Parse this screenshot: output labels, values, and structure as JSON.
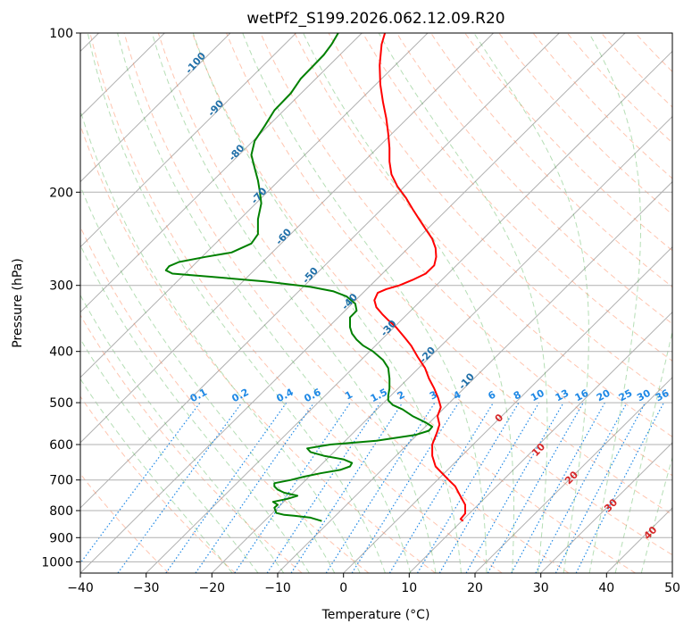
{
  "chart_data": {
    "type": "line",
    "title": "wetPf2_S199.2026.062.12.09.R20",
    "xlabel": "Temperature (°C)",
    "ylabel": "Pressure (hPa)",
    "xlim": [
      -40,
      50
    ],
    "ylim": [
      1050,
      100
    ],
    "y_scale": "log",
    "grid": true,
    "x_ticks": [
      -40,
      -30,
      -20,
      -10,
      0,
      10,
      20,
      30,
      40,
      50
    ],
    "x_tick_labels": [
      "−40",
      "−30",
      "−20",
      "−10",
      "0",
      "10",
      "20",
      "30",
      "40",
      "50"
    ],
    "y_ticks": [
      100,
      200,
      300,
      400,
      500,
      600,
      700,
      800,
      900,
      1000
    ],
    "y_tick_labels": [
      "100",
      "200",
      "300",
      "400",
      "500",
      "600",
      "700",
      "800",
      "900",
      "1000"
    ],
    "colors": {
      "temperature": "#ff0000",
      "dewpoint": "#008000",
      "isotherm": "#b0b0b0",
      "dry_adiabat": "#ff7f50",
      "moist_adiabat": "#2ca02c",
      "mixing_ratio": "#1e88e5"
    },
    "series": [
      {
        "key": "temperature",
        "points": [
          [
            18.2,
            837
          ],
          [
            17.8,
            830
          ],
          [
            18.5,
            810
          ],
          [
            18.5,
            780
          ],
          [
            18,
            760
          ],
          [
            17.5,
            740
          ],
          [
            17,
            720
          ],
          [
            16,
            700
          ],
          [
            15,
            680
          ],
          [
            14,
            660
          ],
          [
            13.5,
            630
          ],
          [
            13.5,
            600
          ],
          [
            14.2,
            570
          ],
          [
            14.6,
            550
          ],
          [
            14.3,
            530
          ],
          [
            14.8,
            510
          ],
          [
            14.4,
            490
          ],
          [
            13.8,
            470
          ],
          [
            13,
            450
          ],
          [
            12.4,
            430
          ],
          [
            11.3,
            410
          ],
          [
            10.3,
            390
          ],
          [
            9.2,
            375
          ],
          [
            8,
            360
          ],
          [
            6.9,
            350
          ],
          [
            5.9,
            340
          ],
          [
            5,
            330
          ],
          [
            4.7,
            320
          ],
          [
            5.2,
            310
          ],
          [
            6.5,
            305
          ],
          [
            8.5,
            300
          ],
          [
            10.5,
            293
          ],
          [
            12.5,
            285
          ],
          [
            13.8,
            275
          ],
          [
            14.1,
            265
          ],
          [
            14,
            255
          ],
          [
            13.5,
            245
          ],
          [
            12.5,
            235
          ],
          [
            11.5,
            225
          ],
          [
            10.5,
            215
          ],
          [
            9.5,
            205
          ],
          [
            8.2,
            195
          ],
          [
            7.3,
            185
          ],
          [
            7,
            175
          ],
          [
            7,
            165
          ],
          [
            6.8,
            155
          ],
          [
            6.5,
            145
          ],
          [
            6,
            135
          ],
          [
            5.6,
            125
          ],
          [
            5.5,
            115
          ],
          [
            5.8,
            105
          ],
          [
            6.3,
            100
          ]
        ]
      },
      {
        "key": "dewpoint",
        "points": [
          [
            -3.3,
            837
          ],
          [
            -5,
            825
          ],
          [
            -7.5,
            818
          ],
          [
            -9,
            815
          ],
          [
            -10.2,
            808
          ],
          [
            -10.5,
            790
          ],
          [
            -10,
            780
          ],
          [
            -10.7,
            770
          ],
          [
            -8.5,
            760
          ],
          [
            -7,
            750
          ],
          [
            -9,
            740
          ],
          [
            -10,
            730
          ],
          [
            -10.5,
            720
          ],
          [
            -10.5,
            710
          ],
          [
            -8,
            700
          ],
          [
            -6,
            690
          ],
          [
            -3.5,
            680
          ],
          [
            -0.5,
            670
          ],
          [
            1,
            660
          ],
          [
            1.3,
            650
          ],
          [
            0,
            640
          ],
          [
            -3,
            630
          ],
          [
            -5,
            620
          ],
          [
            -5.5,
            610
          ],
          [
            -2,
            600
          ],
          [
            5,
            590
          ],
          [
            11,
            575
          ],
          [
            13,
            565
          ],
          [
            13.5,
            555
          ],
          [
            12.5,
            545
          ],
          [
            10.5,
            530
          ],
          [
            9,
            515
          ],
          [
            7.5,
            505
          ],
          [
            6.8,
            495
          ],
          [
            6.8,
            485
          ],
          [
            7,
            470
          ],
          [
            7,
            450
          ],
          [
            6.8,
            430
          ],
          [
            6,
            415
          ],
          [
            4.5,
            400
          ],
          [
            3,
            390
          ],
          [
            2,
            380
          ],
          [
            1.3,
            370
          ],
          [
            1,
            360
          ],
          [
            1,
            345
          ],
          [
            2,
            335
          ],
          [
            1.8,
            325
          ],
          [
            0.5,
            315
          ],
          [
            -1.5,
            308
          ],
          [
            -5,
            302
          ],
          [
            -12,
            295
          ],
          [
            -20,
            289
          ],
          [
            -26,
            285
          ],
          [
            -27,
            281
          ],
          [
            -26.5,
            276
          ],
          [
            -25,
            271
          ],
          [
            -21,
            265
          ],
          [
            -17,
            260
          ],
          [
            -14,
            250
          ],
          [
            -13,
            240
          ],
          [
            -13,
            225
          ],
          [
            -12.5,
            210
          ],
          [
            -12.7,
            200
          ],
          [
            -13,
            190
          ],
          [
            -13.5,
            180
          ],
          [
            -14,
            170
          ],
          [
            -13.5,
            160
          ],
          [
            -12,
            150
          ],
          [
            -10.5,
            140
          ],
          [
            -8,
            130
          ],
          [
            -6.5,
            122
          ],
          [
            -4.5,
            115
          ],
          [
            -3,
            110
          ],
          [
            -1.8,
            105
          ],
          [
            -0.8,
            100
          ]
        ]
      }
    ],
    "dry_adiabat_labels": [
      {
        "text": "-100",
        "p": 100
      },
      {
        "text": "-90",
        "p": 100
      },
      {
        "text": "-80",
        "p": 100
      },
      {
        "text": "-70",
        "p": 100
      },
      {
        "text": "-60",
        "p": 100
      },
      {
        "text": "-50",
        "p": 100
      },
      {
        "text": "-40",
        "p": 100
      },
      {
        "text": "-30",
        "p": 100
      },
      {
        "text": "-20",
        "p": 100
      },
      {
        "text": "-10",
        "p": 100
      },
      {
        "text": "0",
        "p": 100
      }
    ],
    "moist_adiabat_labels": [
      {
        "text": "0",
        "t": 0
      },
      {
        "text": "10",
        "t": 10
      },
      {
        "text": "20",
        "t": 20
      },
      {
        "text": "30",
        "t": 30
      },
      {
        "text": "40",
        "t": 40
      }
    ],
    "mixing_ratio_labels": [
      "0.1",
      "0.2",
      "0.4",
      "0.6",
      "1",
      "1.5",
      "2",
      "3",
      "4",
      "6",
      "8",
      "10",
      "13",
      "16",
      "20",
      "25",
      "30",
      "36"
    ]
  }
}
